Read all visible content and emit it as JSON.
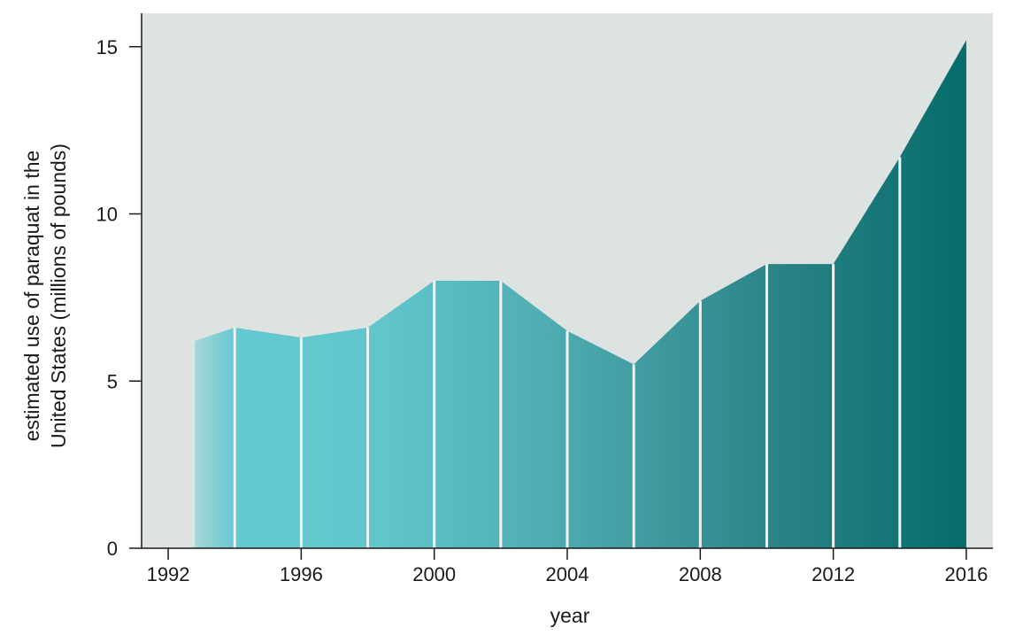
{
  "chart_data": {
    "type": "area",
    "x": [
      1992.8,
      1994,
      1996,
      1998,
      2000,
      2002,
      2004,
      2006,
      2008,
      2010,
      2012,
      2014,
      2016
    ],
    "values": [
      6.2,
      6.6,
      6.3,
      6.6,
      8.0,
      8.0,
      6.5,
      5.5,
      7.4,
      8.5,
      8.5,
      11.7,
      15.2
    ],
    "separators": [
      1994,
      1996,
      1998,
      2000,
      2002,
      2004,
      2006,
      2008,
      2010,
      2012,
      2014
    ],
    "xlabel": "year",
    "ylabel_lines": [
      "estimated use of paraquat in the",
      "United States (millions of pounds)"
    ],
    "x_ticks": [
      "1992",
      "1996",
      "2000",
      "2004",
      "2008",
      "2012",
      "2016"
    ],
    "y_ticks": [
      "0",
      "5",
      "10",
      "15"
    ],
    "xlim": [
      1991.2,
      2016.8
    ],
    "ylim": [
      0,
      16
    ],
    "grid": false,
    "colors": {
      "plot_background": "#dde3e0",
      "fill_start": "#64c8d0",
      "fill_end": "#036b68",
      "separator": "#f2f2f2",
      "axis": "#1a1a1a"
    }
  }
}
